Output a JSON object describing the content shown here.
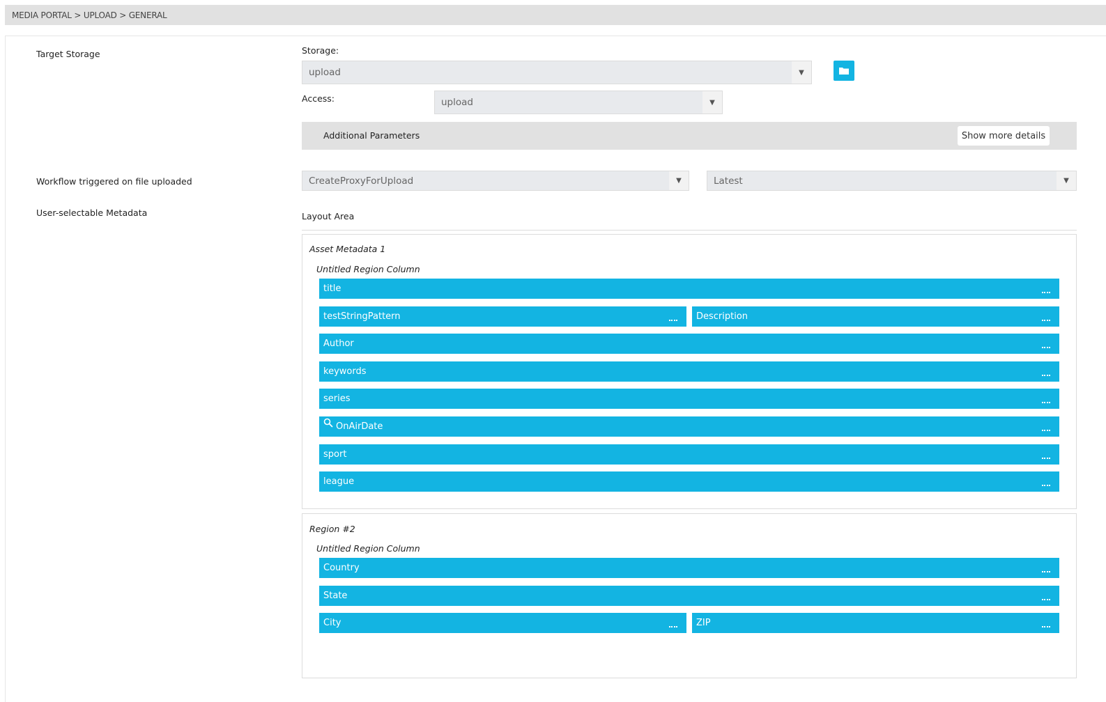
{
  "breadcrumb": "MEDIA PORTAL > UPLOAD > GENERAL",
  "target_storage": {
    "label": "Target Storage",
    "storage_label": "Storage:",
    "storage_value": "upload",
    "access_label": "Access:",
    "access_value": "upload",
    "folder_icon": "folder-icon"
  },
  "additional": {
    "label": "Additional Parameters",
    "button": "Show more details"
  },
  "workflow": {
    "label": "Workflow triggered on file uploaded",
    "value": "CreateProxyForUpload",
    "version": "Latest"
  },
  "metadata": {
    "label": "User-selectable Metadata",
    "layout_area": "Layout Area",
    "regions": [
      {
        "title": "Asset Metadata 1",
        "column": "Untitled Region Column",
        "rows": [
          [
            "title"
          ],
          [
            "testStringPattern",
            "Description"
          ],
          [
            "Author"
          ],
          [
            "keywords"
          ],
          [
            "series"
          ],
          [
            "OnAirDate"
          ],
          [
            "sport"
          ],
          [
            "league"
          ]
        ],
        "search_icon_field": "OnAirDate"
      },
      {
        "title": "Region #2",
        "column": "Untitled Region Column",
        "rows": [
          [
            "Country"
          ],
          [
            "State"
          ],
          [
            "City",
            "ZIP"
          ]
        ]
      }
    ]
  },
  "colors": {
    "accent": "#13b4e2"
  }
}
